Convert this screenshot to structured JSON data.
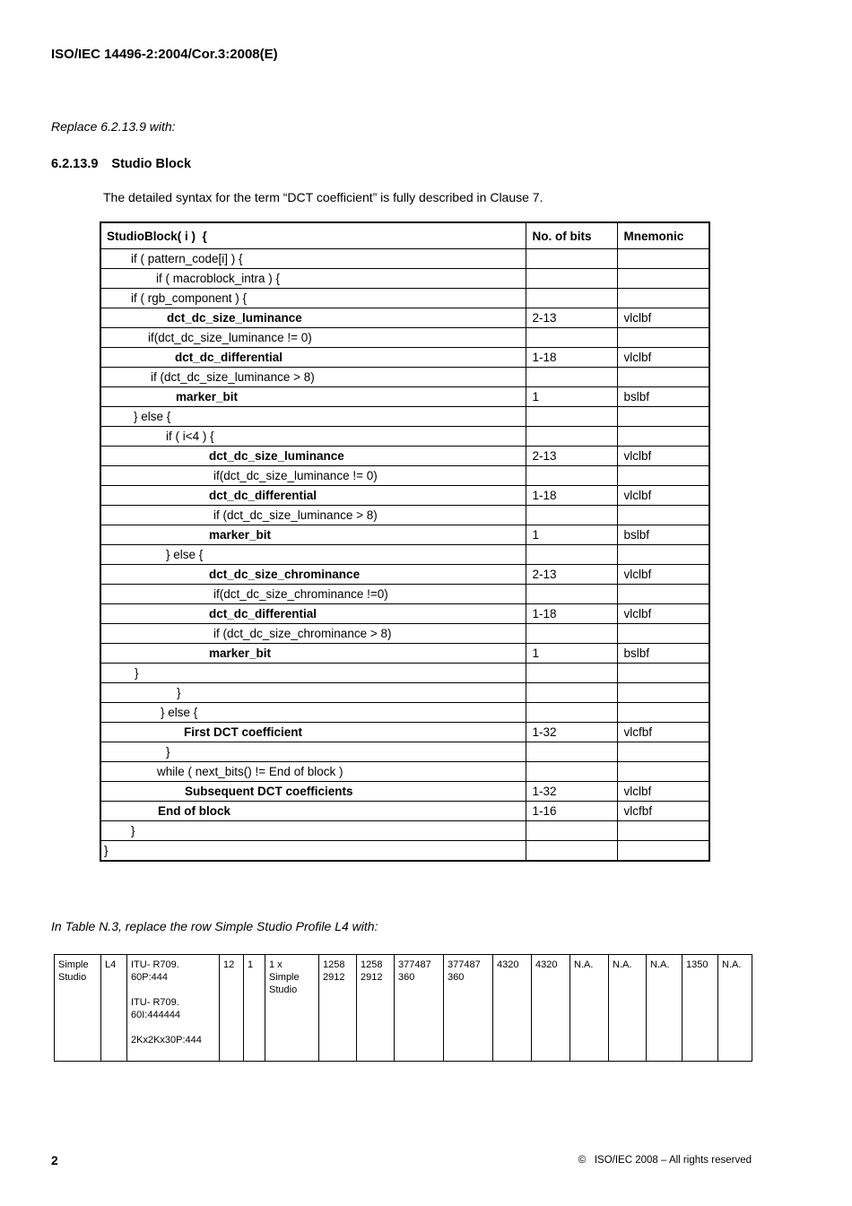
{
  "page": {
    "header_title": "ISO/IEC 14496-2:2004/Cor.3:2008(E)",
    "instruction_1": "Replace 6.2.13.9 with:",
    "section_number": "6.2.13.9",
    "section_title": "Studio Block",
    "paragraph": "The detailed syntax for the term “DCT coefficient” is fully described in Clause 7.",
    "instruction_2": "In Table N.3, replace the row Simple Studio Profile L4 with:",
    "footer_page_number": "2",
    "footer_copyright": "©   ISO/IEC 2008 – All rights reserved"
  },
  "syntax_table": {
    "headers": [
      "StudioBlock( i )  {",
      "No. of bits",
      "Mnemonic"
    ],
    "rows": [
      {
        "code": "if ( pattern_code[i] ) {",
        "indent": 33,
        "bold": false,
        "bits": "",
        "mnemonic": ""
      },
      {
        "code": "if ( macroblock_intra ) {",
        "indent": 61,
        "bold": false,
        "bits": "",
        "mnemonic": ""
      },
      {
        "code": "if ( rgb_component ) {",
        "indent": 33,
        "bold": false,
        "bits": "",
        "mnemonic": ""
      },
      {
        "code": "dct_dc_size_luminance",
        "indent": 73,
        "bold": true,
        "bits": "2-13",
        "mnemonic": "vlclbf"
      },
      {
        "code": "if(dct_dc_size_luminance != 0)",
        "indent": 52,
        "bold": false,
        "bits": "",
        "mnemonic": ""
      },
      {
        "code": "dct_dc_differential",
        "indent": 82,
        "bold": true,
        "bits": "1-18",
        "mnemonic": "vlclbf"
      },
      {
        "code": "if (dct_dc_size_luminance > 8)",
        "indent": 55,
        "bold": false,
        "bits": "",
        "mnemonic": ""
      },
      {
        "code": "marker_bit",
        "indent": 83,
        "bold": true,
        "bits": "1",
        "mnemonic": "bslbf"
      },
      {
        "code": "} else {",
        "indent": 36,
        "bold": false,
        "bits": "",
        "mnemonic": ""
      },
      {
        "code": "if ( i<4 ) {",
        "indent": 72,
        "bold": false,
        "bits": "",
        "mnemonic": ""
      },
      {
        "code": "dct_dc_size_luminance",
        "indent": 120,
        "bold": true,
        "bits": "2-13",
        "mnemonic": "vlclbf"
      },
      {
        "code": "if(dct_dc_size_luminance != 0)",
        "indent": 125,
        "bold": false,
        "bits": "",
        "mnemonic": ""
      },
      {
        "code": "dct_dc_differential",
        "indent": 120,
        "bold": true,
        "bits": "1-18",
        "mnemonic": "vlclbf"
      },
      {
        "code": "if (dct_dc_size_luminance > 8)",
        "indent": 125,
        "bold": false,
        "bits": "",
        "mnemonic": ""
      },
      {
        "code": "marker_bit",
        "indent": 120,
        "bold": true,
        "bits": "1",
        "mnemonic": "bslbf"
      },
      {
        "code": "} else {",
        "indent": 72,
        "bold": false,
        "bits": "",
        "mnemonic": ""
      },
      {
        "code": "dct_dc_size_chrominance",
        "indent": 120,
        "bold": true,
        "bits": "2-13",
        "mnemonic": "vlclbf"
      },
      {
        "code": "if(dct_dc_size_chrominance !=0)",
        "indent": 125,
        "bold": false,
        "bits": "",
        "mnemonic": ""
      },
      {
        "code": "dct_dc_differential",
        "indent": 120,
        "bold": true,
        "bits": "1-18",
        "mnemonic": "vlclbf"
      },
      {
        "code": "if (dct_dc_size_chrominance > 8)",
        "indent": 125,
        "bold": false,
        "bits": "",
        "mnemonic": ""
      },
      {
        "code": "marker_bit",
        "indent": 120,
        "bold": true,
        "bits": "1",
        "mnemonic": "bslbf"
      },
      {
        "code": "}",
        "indent": 37,
        "bold": false,
        "bits": "",
        "mnemonic": ""
      },
      {
        "code": "}",
        "indent": 84,
        "bold": false,
        "bits": "",
        "mnemonic": ""
      },
      {
        "code": "} else {",
        "indent": 66,
        "bold": false,
        "bits": "",
        "mnemonic": ""
      },
      {
        "code": "First DCT coefficient",
        "indent": 92,
        "bold": true,
        "bits": "1-32",
        "mnemonic": "vlcfbf"
      },
      {
        "code": "}",
        "indent": 72,
        "bold": false,
        "bits": "",
        "mnemonic": ""
      },
      {
        "code": "while ( next_bits() != End of block )",
        "indent": 62,
        "bold": false,
        "bits": "",
        "mnemonic": ""
      },
      {
        "code": "Subsequent DCT coefficients",
        "indent": 93,
        "bold": true,
        "bits": "1-32",
        "mnemonic": "vlclbf"
      },
      {
        "code": "End of block",
        "indent": 63,
        "bold": true,
        "bits": "1-16",
        "mnemonic": "vlcfbf"
      },
      {
        "code": "}",
        "indent": 33,
        "bold": false,
        "bits": "",
        "mnemonic": ""
      },
      {
        "code": "}",
        "indent": 3,
        "bold": false,
        "bits": "",
        "mnemonic": ""
      }
    ]
  },
  "profile_table": {
    "cells": [
      "Simple\nStudio",
      "L4",
      "ITU- R709.\n60P:444\n\nITU- R709.\n60I:444444\n\n2Kx2Kx30P:444",
      "12",
      "1",
      "1 x\nSimple\nStudio",
      "1258\n2912",
      "1258\n2912",
      "377487\n360",
      "377487\n360",
      "4320",
      "4320",
      "N.A.",
      "N.A.",
      "N.A.",
      "1350",
      "N.A."
    ]
  }
}
